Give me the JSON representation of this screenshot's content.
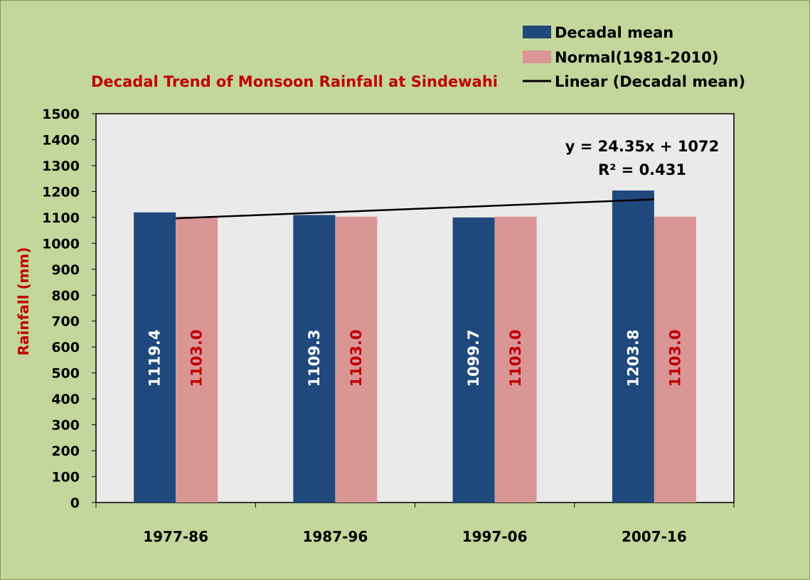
{
  "chart_data": {
    "type": "bar",
    "title": "Decadal Trend of Monsoon Rainfall at Sindewahi",
    "xlabel": "",
    "ylabel": "Rainfall (mm)",
    "categories": [
      "1977-86",
      "1987-96",
      "1997-06",
      "2007-16"
    ],
    "series": [
      {
        "name": "Decadal mean",
        "values": [
          1119.4,
          1109.3,
          1099.7,
          1203.8
        ],
        "labels": [
          "1119.4",
          "1109.3",
          "1099.7",
          "1203.8"
        ],
        "color": "#1F497D",
        "label_color": "#FFFFFF"
      },
      {
        "name": "Normal(1981-2010)",
        "values": [
          1103.0,
          1103.0,
          1103.0,
          1103.0
        ],
        "labels": [
          "1103.0",
          "1103.0",
          "1103.0",
          "1103.0"
        ],
        "color": "#D99694",
        "label_color": "#C00000"
      }
    ],
    "trendline": {
      "name": "Linear (Decadal mean)",
      "slope": 24.35,
      "intercept": 1072,
      "equation": "y = 24.35x + 1072",
      "r_squared": "R² = 0.431",
      "color": "#000000"
    },
    "yticks": [
      "0",
      "100",
      "200",
      "300",
      "400",
      "500",
      "600",
      "700",
      "800",
      "900",
      "1000",
      "1100",
      "1200",
      "1300",
      "1400",
      "1500"
    ],
    "ylim": [
      0,
      1500
    ],
    "grid": false,
    "legend_position": "top-right",
    "colors": {
      "page_background": "#C3D69B",
      "plot_background": "#EAEAEA",
      "title": "#C00000",
      "ylabel": "#C00000"
    }
  }
}
